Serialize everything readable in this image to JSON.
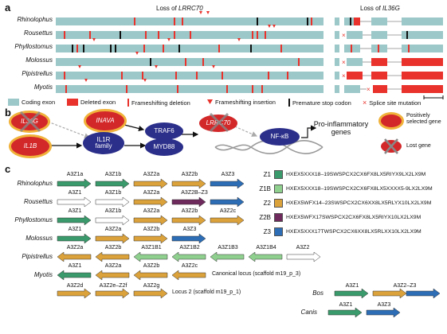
{
  "panels": {
    "a": "a",
    "b": "b",
    "c": "c"
  },
  "panel_a": {
    "title_lrrc70_prefix": "Loss of ",
    "title_lrrc70_gene": "LRRC70",
    "title_il36g_prefix": "Loss of ",
    "title_il36g_gene": "IL36G",
    "species": [
      "Rhinolophus",
      "Rousettus",
      "Phyllostomus",
      "Molossus",
      "Pipistrellus",
      "Myotis"
    ],
    "legend": {
      "coding_exon": "Coding exon",
      "deleted_exon": "Deleted exon",
      "frameshift_deletion": "Frameshifting deletion",
      "frameshift_insertion": "Frameshifting insertion",
      "premature_stop": "Premature stop codon",
      "splice_site": "Splice site mutation"
    },
    "colors": {
      "coding": "#9cc8c9",
      "deleted": "#e8322b",
      "stop": "#111111",
      "insertion": "#e8322b"
    }
  },
  "panel_b": {
    "nodes": {
      "il36g": "IL36G",
      "il1b": "IL1B",
      "inava": "INAVA",
      "il1r_family": "IL1R family",
      "traf6": "TRAF6",
      "myd88": "MYD88",
      "lrrc70": "LRRC70",
      "nfkb": "NF-κB"
    },
    "pro_inflammatory": "Pro-inflammatory genes",
    "legend": {
      "positively_selected": "Positively selected gene",
      "lost_gene": "Lost gene"
    },
    "colors": {
      "navy": "#2c2f8a",
      "red": "#d3282a",
      "gold": "#f0b23a"
    }
  },
  "panel_c": {
    "rows": [
      {
        "species": "Rhinolophus",
        "genes": [
          "A3Z1a",
          "A3Z1b",
          "A3Z2a",
          "A3Z2b",
          "A3Z3"
        ]
      },
      {
        "species": "Rousettus",
        "genes": [
          "A3Z1",
          "A3Z1b",
          "A3Z2a",
          "A3Z2B–Z3",
          ""
        ]
      },
      {
        "species": "Phyllostomus",
        "genes": [
          "A3Z1",
          "A3Z1b",
          "A3Z2a",
          "A3Z2b",
          "A3Z2c"
        ]
      },
      {
        "species": "Molossus",
        "genes": [
          "A3Z1",
          "A3Z2a",
          "A3Z2b",
          "A3Z3"
        ]
      },
      {
        "species": "Pipistrellus",
        "genes": [
          "A3Z2a",
          "A3Z2b",
          "A3Z1B1",
          "A3Z1B2",
          "A3Z1B3",
          "A3Z1B4",
          "A3Z2"
        ]
      },
      {
        "species": "Myotis",
        "genes": [
          "A3Z1",
          "A3Z2a",
          "A3Z2b",
          "A3Z2c"
        ]
      },
      {
        "species": "",
        "genes": [
          "A3Z2d",
          "A3Z2e–Z2f",
          "A3Z2g"
        ]
      }
    ],
    "rousettus_z2": "A3Z2",
    "canonical_locus": "Canonical locus (scaffold m19_p_3)",
    "locus2": "Locus 2 (scaffold m19_p_1)",
    "sequences": [
      {
        "label": "Z1",
        "seq": "HXEX5XXX18–19SWSPCX2CX6FX8LX5RIYX9LX2LX9M",
        "color": "#3a9a6b"
      },
      {
        "label": "Z1B",
        "seq": "HXEX5XXX18–19SWSPCX2CX6FX8LX5XXXX5-9LX2LX9M",
        "color": "#8fd08f"
      },
      {
        "label": "Z2",
        "seq": "HXEX5WFX14–23SWSPCX2CX6XX8LX5RLYX10LX2LX9M",
        "color": "#dba13a"
      },
      {
        "label": "Z2B",
        "seq": "HXEX5WFX17SWSPCX2CX6FX8LX5RIYX10LX2LX9M",
        "color": "#6e2a5c"
      },
      {
        "label": "Z3",
        "seq": "HXEX5XXX17TWSPCX2CX6XX8LX5RLXX10LX2LX9M",
        "color": "#2c6db5"
      }
    ],
    "bos": {
      "species": "Bos",
      "genes": [
        "A3Z1",
        "A3Z2–Z3"
      ]
    },
    "canis": {
      "species": "Canis",
      "genes": [
        "A3Z1",
        "A3Z3"
      ]
    },
    "colors": {
      "z1": "#3a9a6b",
      "z1b": "#8fd08f",
      "z2": "#dba13a",
      "z2b": "#6e2a5c",
      "z3": "#2c6db5",
      "empty": "#ffffff"
    }
  }
}
